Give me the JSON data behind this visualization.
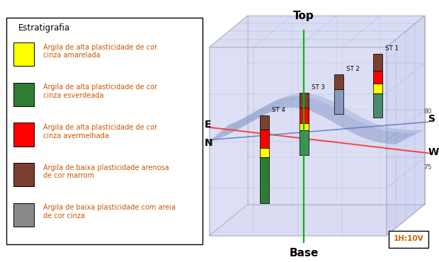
{
  "legend_title": "Estratigrafia",
  "legend_items": [
    {
      "color": "#FFFF00",
      "label": "Argila de alta plasticidade de cor\ncinza amarelada"
    },
    {
      "color": "#2E7D32",
      "label": "Argila de alta plasticidade de cor\ncinza esverdeada"
    },
    {
      "color": "#FF0000",
      "label": "Argila de alta plasticidade de cor\ncinza avermelhada"
    },
    {
      "color": "#7B4030",
      "label": "Argila de baixa plasticidade arenosa\nde cor marrom"
    },
    {
      "color": "#888888",
      "label": "Argila de baixa plasticidade com areia\nde cor cinza"
    }
  ],
  "top_label": "Top",
  "base_label": "Base",
  "scale_label": "1H:10V",
  "cardinal_E": "E",
  "cardinal_N": "N",
  "cardinal_S": "S",
  "cardinal_W": "W",
  "elev_80": "80",
  "elev_75": "75",
  "bg_color": "#FFFFFF",
  "top_color": "#00CC00",
  "red_line_color": "#FF4444",
  "blue_line_color": "#6688BB",
  "text_color": "#CC5500",
  "cardinal_color": "#000000"
}
